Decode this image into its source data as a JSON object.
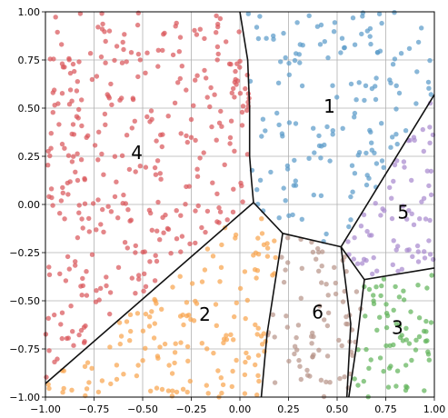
{
  "chart_data": {
    "type": "scatter",
    "title": "",
    "xlabel": "",
    "ylabel": "",
    "xlim": [
      -1.0,
      1.0
    ],
    "ylim": [
      -1.0,
      1.0
    ],
    "grid": true,
    "x_ticks": [
      "−1.00",
      "−0.75",
      "−0.50",
      "−0.25",
      "0.00",
      "0.25",
      "0.50",
      "0.75",
      "1.00"
    ],
    "y_ticks": [
      "−1.00",
      "−0.75",
      "−0.50",
      "−0.25",
      "0.00",
      "0.25",
      "0.50",
      "0.75",
      "1.00"
    ],
    "tick_values": [
      -1.0,
      -0.75,
      -0.5,
      -0.25,
      0.0,
      0.25,
      0.5,
      0.75,
      1.0
    ],
    "regions": [
      {
        "label": "1",
        "color": "#5b9bc9",
        "label_at": [
          0.46,
          0.51
        ],
        "sample_count": 150
      },
      {
        "label": "2",
        "color": "#f8a54f",
        "label_at": [
          -0.18,
          -0.57
        ],
        "sample_count": 150
      },
      {
        "label": "3",
        "color": "#62b45c",
        "label_at": [
          0.81,
          -0.64
        ],
        "sample_count": 70
      },
      {
        "label": "4",
        "color": "#d9575b",
        "label_at": [
          -0.53,
          0.27
        ],
        "sample_count": 340
      },
      {
        "label": "5",
        "color": "#a98ace",
        "label_at": [
          0.84,
          -0.04
        ],
        "sample_count": 70
      },
      {
        "label": "6",
        "color": "#b8958a",
        "label_at": [
          0.4,
          -0.56
        ],
        "sample_count": 80
      }
    ],
    "boundaries": [
      [
        [
          0.0,
          1.0
        ],
        [
          0.04,
          0.75
        ],
        [
          0.05,
          0.5
        ],
        [
          0.05,
          0.25
        ],
        [
          0.06,
          0.12
        ],
        [
          0.07,
          0.01
        ]
      ],
      [
        [
          0.07,
          0.01
        ],
        [
          -1.0,
          -0.93
        ]
      ],
      [
        [
          0.07,
          0.01
        ],
        [
          0.22,
          -0.15
        ]
      ],
      [
        [
          0.22,
          -0.15
        ],
        [
          0.52,
          -0.22
        ],
        [
          1.0,
          0.57
        ]
      ],
      [
        [
          0.52,
          -0.22
        ],
        [
          0.64,
          -0.39
        ],
        [
          1.0,
          -0.33
        ]
      ],
      [
        [
          0.22,
          -0.15
        ],
        [
          0.14,
          -0.67
        ],
        [
          0.11,
          -1.0
        ]
      ],
      [
        [
          0.52,
          -0.22
        ],
        [
          0.57,
          -0.62
        ],
        [
          0.55,
          -1.0
        ]
      ],
      [
        [
          0.64,
          -0.39
        ],
        [
          0.6,
          -0.73
        ],
        [
          0.56,
          -1.0
        ]
      ]
    ]
  }
}
